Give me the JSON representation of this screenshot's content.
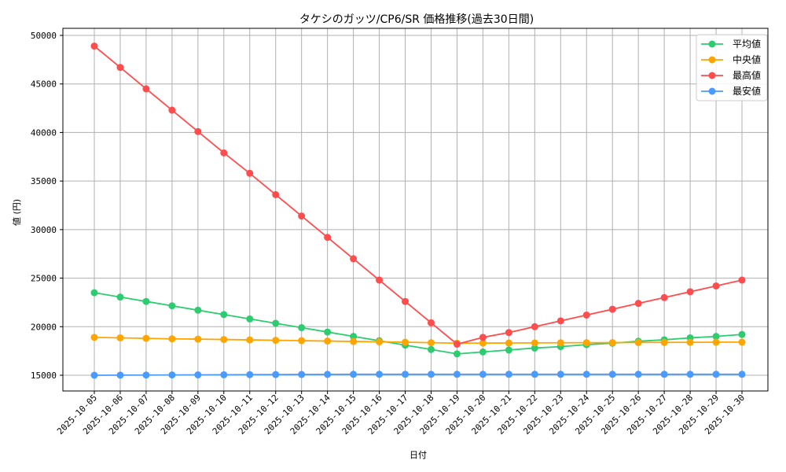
{
  "chart_data": {
    "type": "line",
    "title": "タケシのガッツ/CP6/SR 価格推移(過去30日間)",
    "xlabel": "日付",
    "ylabel": "値 (円)",
    "ylim": [
      13500,
      51000
    ],
    "yticks": [
      15000,
      20000,
      25000,
      30000,
      35000,
      40000,
      45000,
      50000
    ],
    "grid": true,
    "legend_position": "upper right",
    "categories": [
      "2025-10-05",
      "2025-10-06",
      "2025-10-07",
      "2025-10-08",
      "2025-10-09",
      "2025-10-10",
      "2025-10-11",
      "2025-10-12",
      "2025-10-13",
      "2025-10-14",
      "2025-10-15",
      "2025-10-16",
      "2025-10-17",
      "2025-10-18",
      "2025-10-19",
      "2025-10-20",
      "2025-10-21",
      "2025-10-22",
      "2025-10-23",
      "2025-10-24",
      "2025-10-25",
      "2025-10-26",
      "2025-10-27",
      "2025-10-28",
      "2025-10-29",
      "2025-10-30"
    ],
    "series": [
      {
        "name": "平均値",
        "color": "#2ecc71",
        "values": [
          23500,
          23050,
          22600,
          22150,
          21700,
          21250,
          20800,
          20350,
          19900,
          19450,
          19000,
          18550,
          18100,
          17650,
          17200,
          17400,
          17600,
          17800,
          17950,
          18150,
          18300,
          18500,
          18650,
          18850,
          19000,
          19200
        ]
      },
      {
        "name": "中央値",
        "color": "#ffa500",
        "values": [
          18900,
          18850,
          18800,
          18750,
          18720,
          18680,
          18640,
          18600,
          18560,
          18520,
          18480,
          18440,
          18400,
          18350,
          18300,
          18310,
          18320,
          18330,
          18340,
          18350,
          18360,
          18370,
          18380,
          18390,
          18400,
          18410
        ]
      },
      {
        "name": "最高値",
        "color": "#ff4d4d",
        "values": [
          48900,
          46700,
          44500,
          42300,
          40100,
          37900,
          35800,
          33600,
          31400,
          29200,
          27000,
          24800,
          22600,
          20400,
          18200,
          18900,
          19400,
          20000,
          20600,
          21200,
          21800,
          22400,
          23000,
          23600,
          24200,
          24800
        ]
      },
      {
        "name": "最安値",
        "color": "#4a9bff",
        "values": [
          15000,
          15010,
          15020,
          15030,
          15040,
          15050,
          15060,
          15070,
          15080,
          15090,
          15100,
          15100,
          15100,
          15100,
          15100,
          15100,
          15100,
          15100,
          15100,
          15100,
          15100,
          15100,
          15100,
          15100,
          15100,
          15100
        ]
      }
    ]
  }
}
